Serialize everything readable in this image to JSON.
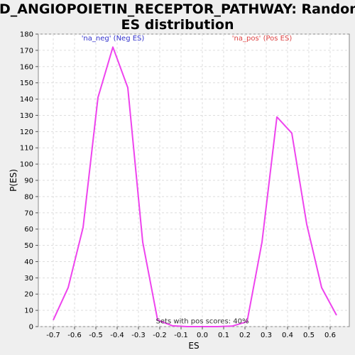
{
  "chart_data": {
    "type": "line",
    "title_lines": [
      "PID_ANGIOPOIETIN_RECEPTOR_PATHWAY: Random",
      "ES distribution"
    ],
    "xlabel": "ES",
    "ylabel": "P(ES)",
    "xlim": [
      -0.77,
      0.69
    ],
    "ylim": [
      0,
      180
    ],
    "x_ticks": [
      -0.7,
      -0.6,
      -0.5,
      -0.4,
      -0.3,
      -0.2,
      -0.1,
      0.0,
      0.1,
      0.2,
      0.3,
      0.4,
      0.5,
      0.6
    ],
    "x_tick_labels": [
      "-0.7",
      "-0.6",
      "-0.5",
      "-0.4",
      "-0.3",
      "-0.2",
      "-0.1",
      "0.0",
      "0.1",
      "0.2",
      "0.3",
      "0.4",
      "0.5",
      "0.6"
    ],
    "y_ticks": [
      0,
      10,
      20,
      30,
      40,
      50,
      60,
      70,
      80,
      90,
      100,
      110,
      120,
      130,
      140,
      150,
      160,
      170,
      180
    ],
    "y_tick_labels": [
      "0",
      "10",
      "20",
      "30",
      "40",
      "50",
      "60",
      "70",
      "80",
      "90",
      "100",
      "110",
      "120",
      "130",
      "140",
      "150",
      "160",
      "170",
      "180"
    ],
    "grid": true,
    "series": [
      {
        "color": "#ee44ee",
        "x": [
          -0.7,
          -0.63,
          -0.56,
          -0.49,
          -0.42,
          -0.35,
          -0.28,
          -0.21,
          -0.14,
          -0.07,
          0.0,
          0.07,
          0.14,
          0.21,
          0.28,
          0.35,
          0.42,
          0.49,
          0.56,
          0.63
        ],
        "y": [
          4,
          24,
          61,
          141,
          172,
          147,
          52,
          4,
          0.5,
          0,
          0,
          0,
          0.3,
          3,
          52,
          129,
          119,
          63,
          24,
          7
        ]
      }
    ],
    "annotations": [
      {
        "text": "'na_neg' (Neg ES)",
        "color": "#3333cc",
        "x": -0.42,
        "y": 176
      },
      {
        "text": "'na_pos' (Pos ES)",
        "color": "#dd4444",
        "x": 0.28,
        "y": 176
      },
      {
        "text": "Sets with pos scores: 40%",
        "color": "#333333",
        "x": 0.0,
        "y": 2
      }
    ]
  },
  "colors": {
    "background": "#efefef",
    "plot_background": "#ffffff",
    "grid": "#dddddd",
    "line": "#ee44ee"
  }
}
